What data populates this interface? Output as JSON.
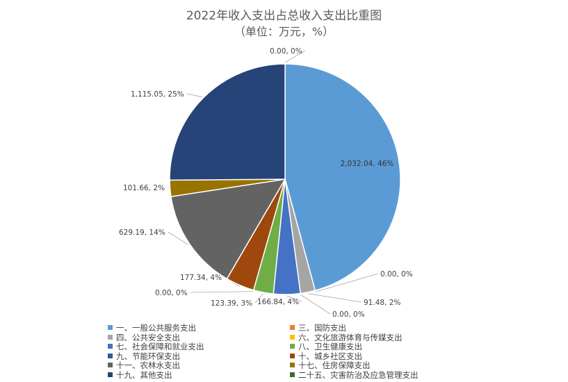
{
  "title": "2022年收入支出占总收入支出比重图",
  "subtitle": "（单位：万元，%）",
  "chart_data": {
    "type": "pie",
    "title": "2022年收入支出占总收入支出比重图",
    "subtitle": "（单位：万元，%）",
    "legend_position": "bottom",
    "slices": [
      {
        "name": "一、一般公共服务支出",
        "value": 2032.04,
        "label": "2,032.04, 46%",
        "color": "#5b9bd5"
      },
      {
        "name": "三、国防支出",
        "value": 0.0,
        "label": "0.00, 0%",
        "color": "#ed7d31"
      },
      {
        "name": "四、公共安全支出",
        "value": 91.48,
        "label": "91.48, 2%",
        "color": "#a5a5a5"
      },
      {
        "name": "六、文化旅游体育与传媒支出",
        "value": 0.0,
        "label": "0.00, 0%",
        "color": "#ffc000"
      },
      {
        "name": "七、社会保障和就业支出",
        "value": 166.84,
        "label": "166.84, 4%",
        "color": "#4472c4"
      },
      {
        "name": "八、卫生健康支出",
        "value": 123.39,
        "label": "123.39, 3%",
        "color": "#70ad47"
      },
      {
        "name": "九、节能环保支出",
        "value": 0.0,
        "label": "0.00, 0%",
        "color": "#255e91"
      },
      {
        "name": "十、城乡社区支出",
        "value": 177.34,
        "label": "177.34, 4%",
        "color": "#9e480e"
      },
      {
        "name": "十一、农林水支出",
        "value": 629.19,
        "label": "629.19, 14%",
        "color": "#636363"
      },
      {
        "name": "十七、住房保障支出",
        "value": 101.66,
        "label": "101.66, 2%",
        "color": "#997300"
      },
      {
        "name": "十九、其他支出",
        "value": 1115.05,
        "label": "1,115.05, 25%",
        "color": "#264478"
      },
      {
        "name": "二十五、灾害防治及应急管理支出",
        "value": 0.0,
        "label": "0.00, 0%",
        "color": "#43682b"
      }
    ]
  }
}
